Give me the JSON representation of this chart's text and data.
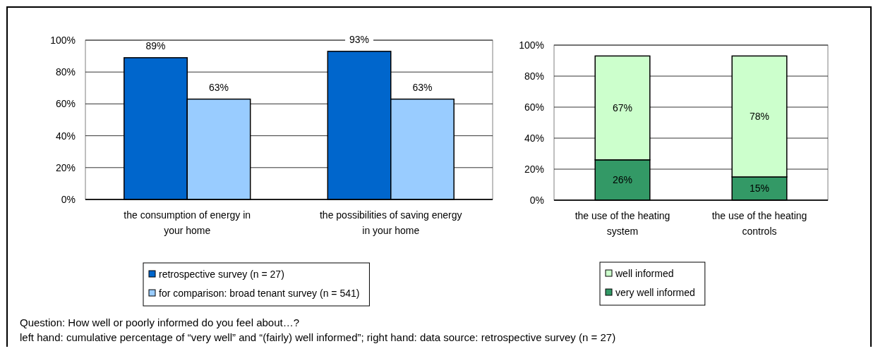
{
  "chart_data": [
    {
      "type": "bar",
      "categories": [
        "the consumption of energy in your home",
        "the possibilities of saving energy in your home"
      ],
      "series": [
        {
          "name": "retrospective survey (n = 27)",
          "color": "#0066cc",
          "values": [
            89,
            93
          ],
          "value_labels": [
            "89%",
            "93%"
          ]
        },
        {
          "name": "for comparison: broad tenant survey (n = 541)",
          "color": "#99ccff",
          "values": [
            63,
            63
          ],
          "value_labels": [
            "63%",
            "63%"
          ]
        }
      ],
      "ylim": [
        0,
        100
      ],
      "yticks": [
        {
          "value": 0,
          "label": "0%"
        },
        {
          "value": 20,
          "label": "20%"
        },
        {
          "value": 40,
          "label": "40%"
        },
        {
          "value": 60,
          "label": "60%"
        },
        {
          "value": 80,
          "label": "80%"
        },
        {
          "value": 100,
          "label": "100%"
        }
      ],
      "grid": "y",
      "legend": "bottom",
      "annotations": [
        "Question: How well or poorly informed do you feel about…?",
        "left hand: cumulative percentage of “very well” and “(fairly) well informed”; right hand: data source: retrospective survey (n = 27)"
      ]
    },
    {
      "type": "bar",
      "stacked": true,
      "categories": [
        "the use of the heating system",
        "the use of the heating controls"
      ],
      "series": [
        {
          "name": "very well informed",
          "color": "#339966",
          "values": [
            26,
            15
          ],
          "value_labels": [
            "26%",
            "15%"
          ]
        },
        {
          "name": "well informed",
          "color": "#ccffcc",
          "values": [
            67,
            78
          ],
          "value_labels": [
            "67%",
            "78%"
          ]
        }
      ],
      "ylim": [
        0,
        100
      ],
      "yticks": [
        {
          "value": 0,
          "label": "0%"
        },
        {
          "value": 20,
          "label": "20%"
        },
        {
          "value": 40,
          "label": "40%"
        },
        {
          "value": 60,
          "label": "60%"
        },
        {
          "value": 80,
          "label": "80%"
        },
        {
          "value": 100,
          "label": "100%"
        }
      ],
      "grid": "y",
      "legend": "bottom"
    }
  ]
}
